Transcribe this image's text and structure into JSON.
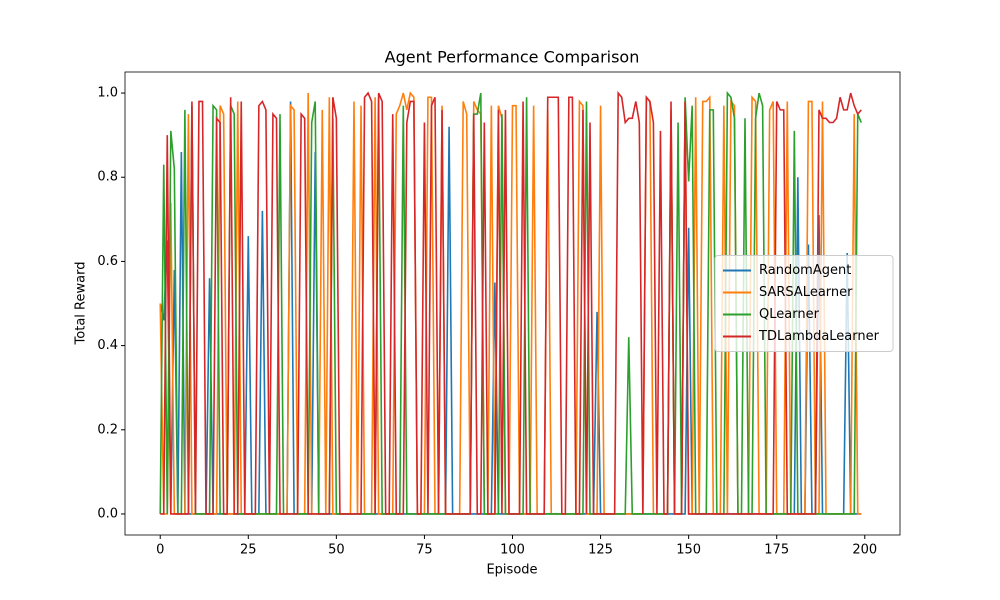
{
  "chart_data": {
    "type": "line",
    "title": "Agent Performance Comparison",
    "x_label": "Episode",
    "y_label": "Total Reward",
    "x": [
      0,
      1,
      2,
      3,
      4,
      5,
      6,
      7,
      8,
      9,
      10,
      11,
      12,
      13,
      14,
      15,
      16,
      17,
      18,
      19,
      20,
      21,
      22,
      23,
      24,
      25,
      26,
      27,
      28,
      29,
      30,
      31,
      32,
      33,
      34,
      35,
      36,
      37,
      38,
      39,
      40,
      41,
      42,
      43,
      44,
      45,
      46,
      47,
      48,
      49,
      50,
      51,
      52,
      53,
      54,
      55,
      56,
      57,
      58,
      59,
      60,
      61,
      62,
      63,
      64,
      65,
      66,
      67,
      68,
      69,
      70,
      71,
      72,
      73,
      74,
      75,
      76,
      77,
      78,
      79,
      80,
      81,
      82,
      83,
      84,
      85,
      86,
      87,
      88,
      89,
      90,
      91,
      92,
      93,
      94,
      95,
      96,
      97,
      98,
      99,
      100,
      101,
      102,
      103,
      104,
      105,
      106,
      107,
      108,
      109,
      110,
      111,
      112,
      113,
      114,
      115,
      116,
      117,
      118,
      119,
      120,
      121,
      122,
      123,
      124,
      125,
      126,
      127,
      128,
      129,
      130,
      131,
      132,
      133,
      134,
      135,
      136,
      137,
      138,
      139,
      140,
      141,
      142,
      143,
      144,
      145,
      146,
      147,
      148,
      149,
      150,
      151,
      152,
      153,
      154,
      155,
      156,
      157,
      158,
      159,
      160,
      161,
      162,
      163,
      164,
      165,
      166,
      167,
      168,
      169,
      170,
      171,
      172,
      173,
      174,
      175,
      176,
      177,
      178,
      179,
      180,
      181,
      182,
      183,
      184,
      185,
      186,
      187,
      188,
      189,
      190,
      191,
      192,
      193,
      194,
      195,
      196,
      197,
      198,
      199
    ],
    "series": [
      {
        "name": "RandomAgent",
        "color": "#1f77b4",
        "values": [
          0.5,
          0.46,
          0.65,
          0,
          0.58,
          0,
          0.86,
          0,
          0,
          0,
          0,
          0,
          0,
          0,
          0.56,
          0,
          0,
          0,
          0,
          0,
          0,
          0,
          0,
          0,
          0,
          0.66,
          0,
          0,
          0,
          0.72,
          0,
          0,
          0,
          0,
          0,
          0,
          0,
          0.98,
          0,
          0,
          0,
          0,
          0,
          0,
          0.86,
          0,
          0,
          0,
          0,
          0,
          0,
          0,
          0,
          0,
          0,
          0,
          0,
          0,
          0,
          0,
          0,
          0,
          0,
          0,
          0,
          0,
          0,
          0,
          0,
          0,
          0,
          0,
          0,
          0,
          0,
          0,
          0,
          0,
          0,
          0,
          0,
          0,
          0.92,
          0,
          0,
          0,
          0,
          0,
          0,
          0,
          0,
          0,
          0,
          0,
          0,
          0.55,
          0,
          0,
          0,
          0,
          0,
          0,
          0,
          0,
          0,
          0,
          0,
          0,
          0,
          0,
          0,
          0,
          0,
          0,
          0,
          0,
          0,
          0,
          0,
          0,
          0,
          0,
          0,
          0,
          0.48,
          0,
          0,
          0,
          0,
          0,
          0,
          0,
          0,
          0,
          0,
          0,
          0,
          0,
          0,
          0,
          0,
          0,
          0,
          0,
          0,
          0,
          0,
          0,
          0,
          0,
          0.68,
          0,
          0,
          0,
          0,
          0,
          0,
          0,
          0,
          0,
          0,
          0,
          0,
          0,
          0,
          0,
          0,
          0,
          0,
          0,
          0,
          0,
          0,
          0,
          0,
          0,
          0,
          0,
          0,
          0,
          0,
          0.8,
          0,
          0,
          0.64,
          0,
          0,
          0.71,
          0,
          0,
          0,
          0,
          0,
          0,
          0,
          0.62,
          0,
          0,
          0,
          0
        ]
      },
      {
        "name": "SARSALearner",
        "color": "#ff7f0e",
        "values": [
          0.5,
          0,
          0,
          0.74,
          0,
          0,
          0,
          0,
          0.95,
          0,
          0,
          0,
          0,
          0,
          0,
          0,
          0,
          0.97,
          0.95,
          0,
          0,
          0,
          0.98,
          0,
          0,
          0,
          0,
          0,
          0,
          0,
          0,
          0,
          0,
          0,
          0,
          0,
          0,
          0.97,
          0.96,
          0,
          0,
          0,
          1.0,
          0,
          0,
          0,
          0.96,
          0,
          0.99,
          0,
          0,
          0,
          0,
          0,
          0,
          0.98,
          0,
          0.97,
          0,
          0,
          0,
          0.99,
          0,
          0,
          0,
          0,
          0,
          0.95,
          0.97,
          1.0,
          0.96,
          1.0,
          0.99,
          0,
          0,
          0,
          0.99,
          0.99,
          0,
          0,
          0.97,
          0,
          0,
          0,
          0,
          0,
          0.98,
          0.95,
          0,
          0.98,
          0.96,
          0.95,
          0,
          0,
          0.97,
          0,
          0.97,
          0.94,
          0,
          0,
          0.97,
          0.97,
          0,
          0,
          0,
          0,
          0.97,
          0,
          0,
          0,
          0.96,
          0,
          0,
          0,
          0,
          0,
          0,
          0,
          0,
          0.98,
          0.97,
          0,
          0,
          0,
          0,
          0.97,
          0,
          0,
          0,
          0,
          0,
          0,
          0,
          0,
          0,
          0,
          0,
          0,
          0.99,
          0.98,
          0,
          0,
          0,
          0,
          0,
          0.96,
          0,
          0,
          0,
          0.98,
          0,
          0,
          0.99,
          0,
          0.98,
          0.98,
          0.99,
          0,
          0,
          0,
          0.97,
          0,
          0.98,
          0.97,
          0,
          0,
          0,
          0,
          0.99,
          0.98,
          0,
          0,
          0,
          0.96,
          0.98,
          0,
          0,
          0,
          0.98,
          0,
          0,
          0,
          0,
          0,
          0.98,
          0.98,
          0,
          0,
          0.98,
          0,
          0,
          0,
          0,
          0,
          0,
          0,
          0,
          0.95,
          0,
          0
        ]
      },
      {
        "name": "QLearner",
        "color": "#2ca02c",
        "values": [
          0,
          0.83,
          0,
          0.91,
          0.82,
          0,
          0,
          0.96,
          0,
          0.97,
          0,
          0,
          0,
          0,
          0,
          0.97,
          0.96,
          0,
          0,
          0,
          0.97,
          0.95,
          0,
          0,
          0,
          0,
          0,
          0,
          0,
          0,
          0,
          0,
          0,
          0,
          0.95,
          0,
          0,
          0,
          0,
          0,
          0,
          0,
          0,
          0.93,
          0.98,
          0,
          0,
          0,
          0,
          0.94,
          0,
          0,
          0,
          0,
          0,
          0,
          0,
          0,
          0,
          0,
          0,
          0,
          0.99,
          0,
          0,
          0,
          0,
          0,
          0,
          0.97,
          0,
          0,
          0,
          0,
          0,
          0,
          0,
          0,
          0,
          0,
          0,
          0,
          0,
          0,
          0,
          0,
          0,
          0,
          0,
          0.95,
          0.95,
          1.0,
          0,
          0,
          0,
          0,
          0,
          0.95,
          0,
          0,
          0,
          0,
          0,
          0,
          0.99,
          0,
          0,
          0,
          0,
          0,
          0,
          0,
          0,
          0,
          0,
          0,
          0,
          0,
          0,
          0,
          0,
          0.98,
          0,
          0,
          0,
          0,
          0,
          0,
          0,
          0,
          0,
          0,
          0,
          0.42,
          0,
          0,
          0,
          0,
          0,
          0,
          0,
          0,
          0,
          0,
          0,
          0.94,
          0,
          0.93,
          0,
          0.99,
          0.79,
          0.97,
          0,
          0,
          0,
          0,
          0.96,
          0.96,
          0,
          0,
          0,
          1.0,
          0.99,
          0.94,
          0,
          0,
          0.94,
          0,
          0,
          0.94,
          1.0,
          0.97,
          0,
          0,
          0,
          0,
          0,
          0,
          0,
          0,
          0.91,
          0,
          0,
          0,
          0,
          0,
          0,
          0,
          0,
          0,
          0,
          0,
          0,
          0,
          0,
          0,
          0,
          0,
          0.95,
          0.93
        ]
      },
      {
        "name": "TDLambdaLearner",
        "color": "#d62728",
        "values": [
          0,
          0,
          0.9,
          0,
          0,
          0,
          0,
          0,
          0,
          0.98,
          0,
          0.98,
          0.98,
          0,
          0,
          0,
          0.94,
          0.93,
          0,
          0,
          0.99,
          0,
          0,
          0.98,
          0,
          0,
          0,
          0,
          0.97,
          0.98,
          0.96,
          0,
          0.95,
          0.94,
          0,
          0,
          0,
          0,
          0,
          0,
          0.95,
          0.94,
          0,
          0,
          0,
          0,
          0,
          0,
          0,
          0.99,
          0.94,
          0,
          0,
          0,
          0,
          0,
          0,
          0,
          0.99,
          1.0,
          0.98,
          0,
          1.0,
          0.98,
          0,
          0,
          0.95,
          0,
          0,
          0,
          0.93,
          0.98,
          0.98,
          0,
          0,
          0.93,
          0,
          0.97,
          0.99,
          0,
          0.96,
          0,
          0,
          0,
          0,
          0,
          0,
          0,
          0,
          0.95,
          0,
          0,
          0.93,
          0,
          0,
          0,
          0.96,
          0,
          0.96,
          0,
          0,
          0,
          0,
          0.98,
          0,
          0,
          0,
          0,
          0,
          0,
          0.99,
          0.99,
          0.99,
          0.99,
          0,
          0,
          0.99,
          0.99,
          0,
          0,
          0.96,
          0,
          0.93,
          0,
          0,
          0,
          0,
          0,
          0,
          0,
          1.0,
          0.99,
          0.93,
          0.94,
          0.94,
          0.98,
          0.93,
          0,
          0.99,
          0.98,
          0.93,
          0,
          0.91,
          0,
          0,
          0.98,
          0,
          0,
          0,
          0.98,
          0,
          0,
          0,
          0,
          0,
          0,
          0,
          0,
          0,
          0,
          0,
          0,
          0,
          0,
          0,
          0,
          0,
          0,
          0,
          0,
          0,
          0,
          0,
          0,
          0,
          0.98,
          0.96,
          0.96,
          0,
          0,
          0,
          0,
          0,
          0,
          0,
          0,
          0,
          0.96,
          0.94,
          0.94,
          0.93,
          0.93,
          0.94,
          0.99,
          0.96,
          0.96,
          1.0,
          0.97,
          0.95,
          0.96
        ]
      }
    ],
    "xlim": [
      -10,
      210
    ],
    "xticks": [
      0,
      25,
      50,
      75,
      100,
      125,
      150,
      175,
      200
    ],
    "ylim": [
      -0.05,
      1.05
    ],
    "yticks": [
      {
        "value": 0,
        "label": "0.0"
      },
      0.2,
      0.4,
      0.6,
      0.8,
      {
        "value": 1,
        "label": "1.0"
      }
    ],
    "legend": "center right"
  }
}
